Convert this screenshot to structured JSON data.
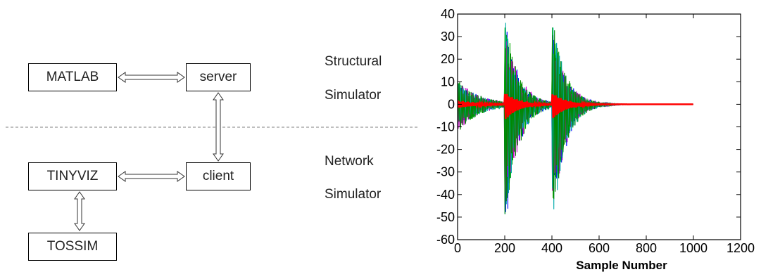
{
  "diagram": {
    "boxes": {
      "matlab": "MATLAB",
      "server": "server",
      "tinyviz": "TINYVIZ",
      "client": "client",
      "tossim": "TOSSIM"
    },
    "labels": {
      "structural_line1": "Structural",
      "structural_line2": "Simulator",
      "network_line1": "Network",
      "network_line2": "Simulator"
    }
  },
  "chart_data": {
    "type": "line",
    "title": "",
    "xlabel": "Sample Number",
    "ylabel": "",
    "xlim": [
      0,
      1200
    ],
    "ylim": [
      -60,
      40
    ],
    "xticks": [
      0,
      200,
      400,
      600,
      800,
      1000,
      1200
    ],
    "yticks": [
      40,
      30,
      20,
      10,
      0,
      -10,
      -20,
      -30,
      -40,
      -50,
      -60
    ],
    "grid": false,
    "events": [
      {
        "start": 0,
        "amplitude_pos": 11,
        "amplitude_neg": -13
      },
      {
        "start": 200,
        "amplitude_pos": 40,
        "amplitude_neg": -59
      },
      {
        "start": 400,
        "amplitude_pos": 40,
        "amplitude_neg": -57
      }
    ],
    "x_end": 1000,
    "series_colors": [
      "#0000ff",
      "#00aa00",
      "#cc00cc",
      "#00aaaa",
      "#008800",
      "#ff0000"
    ]
  }
}
